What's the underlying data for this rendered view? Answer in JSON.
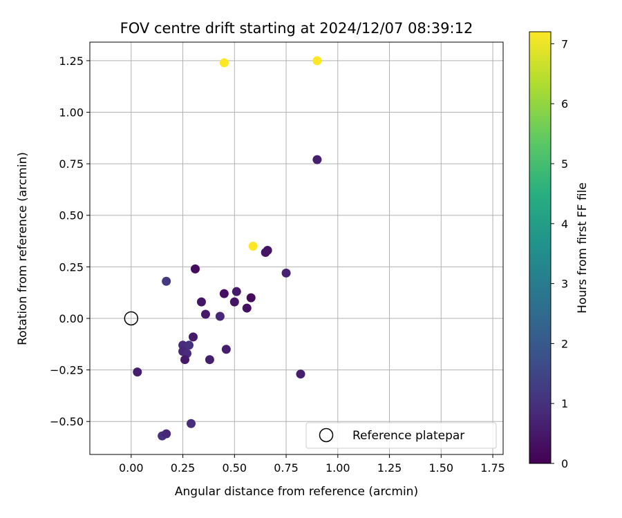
{
  "chart_data": {
    "type": "scatter",
    "title": "FOV centre drift starting at 2024/12/07 08:39:12",
    "xlabel": "Angular distance from reference (arcmin)",
    "ylabel": "Rotation from reference (arcmin)",
    "xlim": [
      -0.2,
      1.8
    ],
    "ylim": [
      -0.66,
      1.34
    ],
    "x_ticks": [
      0.0,
      0.25,
      0.5,
      0.75,
      1.0,
      1.25,
      1.5,
      1.75
    ],
    "x_tick_labels": [
      "0.00",
      "0.25",
      "0.50",
      "0.75",
      "1.00",
      "1.25",
      "1.50",
      "1.75"
    ],
    "y_ticks": [
      -0.5,
      -0.25,
      0.0,
      0.25,
      0.5,
      0.75,
      1.0,
      1.25
    ],
    "y_tick_labels": [
      "−0.50",
      "−0.25",
      "0.00",
      "0.25",
      "0.50",
      "0.75",
      "1.00",
      "1.25"
    ],
    "grid": true,
    "legend": {
      "placement": "lower-right",
      "entries": [
        {
          "label": "Reference platepar",
          "marker": "open-circle"
        }
      ]
    },
    "reference_point": {
      "x": 0.0,
      "y": 0.0
    },
    "colorbar": {
      "label": "Hours from first FF file",
      "range": [
        0,
        7.2
      ],
      "ticks": [
        0,
        1,
        2,
        3,
        4,
        5,
        6,
        7
      ],
      "tick_labels": [
        "0",
        "1",
        "2",
        "3",
        "4",
        "5",
        "6",
        "7"
      ],
      "colormap": "viridis"
    },
    "points": [
      {
        "x": 0.45,
        "y": 1.24,
        "hours": 7.2
      },
      {
        "x": 0.9,
        "y": 1.25,
        "hours": 7.2
      },
      {
        "x": 0.59,
        "y": 0.35,
        "hours": 7.2
      },
      {
        "x": 0.9,
        "y": 0.77,
        "hours": 0.6
      },
      {
        "x": 0.65,
        "y": 0.32,
        "hours": 0.4
      },
      {
        "x": 0.66,
        "y": 0.33,
        "hours": 0.4
      },
      {
        "x": 0.75,
        "y": 0.22,
        "hours": 0.7
      },
      {
        "x": 0.31,
        "y": 0.24,
        "hours": 0.2
      },
      {
        "x": 0.17,
        "y": 0.18,
        "hours": 1.2
      },
      {
        "x": 0.45,
        "y": 0.12,
        "hours": 0.3
      },
      {
        "x": 0.51,
        "y": 0.13,
        "hours": 0.5
      },
      {
        "x": 0.58,
        "y": 0.1,
        "hours": 0.2
      },
      {
        "x": 0.34,
        "y": 0.08,
        "hours": 0.4
      },
      {
        "x": 0.5,
        "y": 0.08,
        "hours": 0.4
      },
      {
        "x": 0.56,
        "y": 0.05,
        "hours": 0.3
      },
      {
        "x": 0.36,
        "y": 0.02,
        "hours": 0.5
      },
      {
        "x": 0.43,
        "y": 0.01,
        "hours": 0.8
      },
      {
        "x": 0.3,
        "y": -0.09,
        "hours": 0.5
      },
      {
        "x": 0.25,
        "y": -0.13,
        "hours": 0.9
      },
      {
        "x": 0.28,
        "y": -0.13,
        "hours": 1.0
      },
      {
        "x": 0.25,
        "y": -0.16,
        "hours": 0.8
      },
      {
        "x": 0.27,
        "y": -0.17,
        "hours": 0.9
      },
      {
        "x": 0.26,
        "y": -0.2,
        "hours": 0.5
      },
      {
        "x": 0.38,
        "y": -0.2,
        "hours": 0.6
      },
      {
        "x": 0.46,
        "y": -0.15,
        "hours": 0.6
      },
      {
        "x": 0.03,
        "y": -0.26,
        "hours": 0.6
      },
      {
        "x": 0.82,
        "y": -0.27,
        "hours": 0.6
      },
      {
        "x": 0.29,
        "y": -0.51,
        "hours": 0.9
      },
      {
        "x": 0.15,
        "y": -0.57,
        "hours": 1.0
      },
      {
        "x": 0.17,
        "y": -0.56,
        "hours": 0.8
      }
    ]
  }
}
